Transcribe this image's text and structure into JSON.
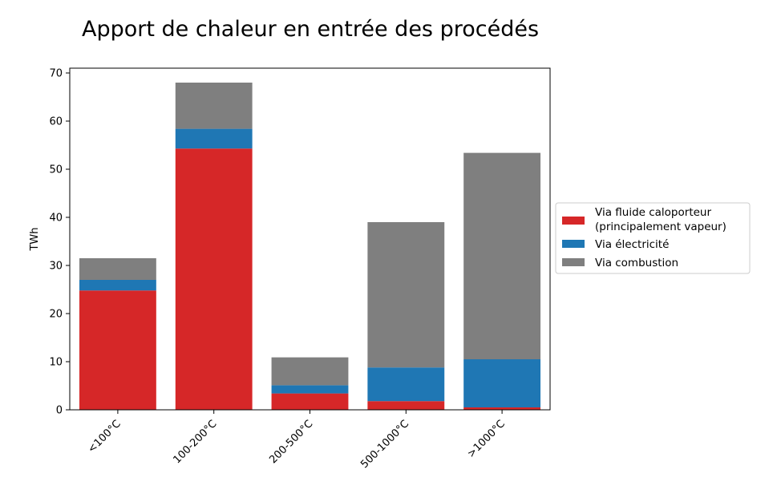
{
  "chart_data": {
    "type": "bar",
    "stacked": true,
    "title": "Apport de chaleur en entrée des procédés",
    "xlabel": "",
    "ylabel": "TWh",
    "categories": [
      "<100°C",
      "100-200°C",
      "200-500°C",
      "500-1000°C",
      ">1000°C"
    ],
    "ylim": [
      0,
      71
    ],
    "yticks": [
      0,
      10,
      20,
      30,
      40,
      50,
      60,
      70
    ],
    "grid": false,
    "legend_position": "right",
    "series": [
      {
        "name": "Via fluide caloporteur\n(principalement vapeur)",
        "color": "#d62728",
        "values": [
          24.8,
          54.3,
          3.4,
          1.8,
          0.5
        ]
      },
      {
        "name": "Via électricité",
        "color": "#1f77b4",
        "values": [
          2.2,
          4.1,
          1.7,
          7.0,
          10.0
        ]
      },
      {
        "name": "Via combustion",
        "color": "#7f7f7f",
        "values": [
          4.5,
          9.6,
          5.8,
          30.2,
          42.9
        ]
      }
    ]
  }
}
